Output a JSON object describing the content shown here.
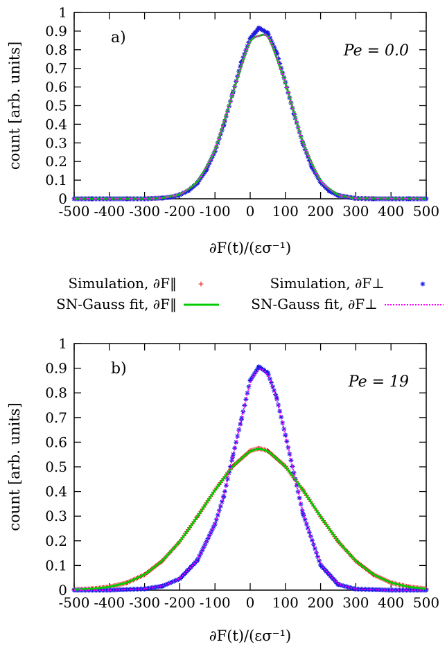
{
  "legend": {
    "entries": [
      {
        "label": "Simulation, ∂F‖",
        "series": "sim-par",
        "color": "#e41a1c",
        "marker": "plus"
      },
      {
        "label": "Simulation, ∂F⊥",
        "series": "sim-perp",
        "color": "#1a1ae6",
        "marker": "star"
      },
      {
        "label": "SN-Gauss fit, ∂F‖",
        "series": "fit-par",
        "color": "#00cc00",
        "marker": "line"
      },
      {
        "label": "SN-Gauss fit, ∂F⊥",
        "series": "fit-perp",
        "color": "#ff00ff",
        "marker": "dotted-line"
      }
    ]
  },
  "chart_data": [
    {
      "type": "scatter",
      "panel_label": "a)",
      "annotation": "Pe = 0.0",
      "xlabel": "∂F(t)/(εσ⁻¹)",
      "ylabel": "count [arb. units]",
      "xlim": [
        -500,
        500
      ],
      "ylim": [
        0,
        1
      ],
      "xticks": [
        -500,
        -400,
        -300,
        -200,
        -100,
        0,
        100,
        200,
        300,
        400,
        500
      ],
      "xtick_labels": [
        "-500",
        "-400",
        "-300",
        "-200",
        "-100",
        "0",
        "100",
        "200",
        "300",
        "400",
        "500"
      ],
      "yticks": [
        0,
        0.1,
        0.2,
        0.3,
        0.4,
        0.5,
        0.6,
        0.7,
        0.8,
        0.9,
        1
      ],
      "ytick_labels": [
        "0",
        "0.1",
        "0.2",
        "0.3",
        "0.4",
        "0.5",
        "0.6",
        "0.7",
        "0.8",
        "0.9",
        "1"
      ],
      "grid": false,
      "series": [
        {
          "key": "sim-par",
          "kind": "points",
          "marker": "plus",
          "color": "#e41a1c",
          "x": [
            -500,
            -450,
            -400,
            -350,
            -300,
            -250,
            -225,
            -200,
            -175,
            -150,
            -125,
            -100,
            -75,
            -50,
            -25,
            0,
            25,
            50,
            75,
            100,
            125,
            150,
            175,
            200,
            225,
            250,
            300,
            350,
            400,
            450,
            500
          ],
          "y": [
            0,
            0,
            0,
            0,
            0,
            0.004,
            0.009,
            0.021,
            0.044,
            0.085,
            0.155,
            0.255,
            0.397,
            0.564,
            0.731,
            0.86,
            0.917,
            0.889,
            0.784,
            0.625,
            0.452,
            0.295,
            0.172,
            0.089,
            0.042,
            0.018,
            0.002,
            0,
            0,
            0,
            0
          ]
        },
        {
          "key": "sim-perp",
          "kind": "points",
          "marker": "star",
          "color": "#1a1ae6",
          "x": [
            -500,
            -450,
            -400,
            -350,
            -300,
            -250,
            -225,
            -200,
            -175,
            -150,
            -125,
            -100,
            -75,
            -50,
            -25,
            0,
            25,
            50,
            75,
            100,
            125,
            150,
            175,
            200,
            225,
            250,
            300,
            350,
            400,
            450,
            500
          ],
          "y": [
            0,
            0,
            0,
            0,
            0,
            0.004,
            0.009,
            0.021,
            0.044,
            0.085,
            0.155,
            0.255,
            0.397,
            0.564,
            0.731,
            0.86,
            0.917,
            0.889,
            0.784,
            0.625,
            0.452,
            0.295,
            0.172,
            0.089,
            0.042,
            0.018,
            0.002,
            0,
            0,
            0,
            0
          ]
        },
        {
          "key": "fit-par",
          "kind": "line",
          "color": "#00cc00",
          "x": [
            -500,
            -300,
            -250,
            -200,
            -150,
            -100,
            -50,
            0,
            50,
            100,
            150,
            200,
            250,
            300,
            500
          ],
          "y": [
            0,
            0,
            0.004,
            0.021,
            0.085,
            0.255,
            0.564,
            0.86,
            0.889,
            0.625,
            0.295,
            0.089,
            0.018,
            0.002,
            0
          ]
        },
        {
          "key": "fit-perp",
          "kind": "line",
          "color": "#ff00ff",
          "x": [
            -500,
            -300,
            -250,
            -200,
            -150,
            -100,
            -50,
            0,
            50,
            100,
            150,
            200,
            250,
            300,
            500
          ],
          "y": [
            0,
            0,
            0.004,
            0.021,
            0.085,
            0.255,
            0.564,
            0.86,
            0.889,
            0.625,
            0.295,
            0.089,
            0.018,
            0.002,
            0
          ]
        }
      ]
    },
    {
      "type": "scatter",
      "panel_label": "b)",
      "annotation": "Pe = 19",
      "xlabel": "∂F(t)/(εσ⁻¹)",
      "ylabel": "count [arb. units]",
      "xlim": [
        -500,
        500
      ],
      "ylim": [
        0,
        1
      ],
      "xticks": [
        -500,
        -400,
        -300,
        -200,
        -100,
        0,
        100,
        200,
        300,
        400,
        500
      ],
      "xtick_labels": [
        "-500",
        "-400",
        "-300",
        "-200",
        "-100",
        "0",
        "100",
        "200",
        "300",
        "400",
        "500"
      ],
      "yticks": [
        0,
        0.1,
        0.2,
        0.3,
        0.4,
        0.5,
        0.6,
        0.7,
        0.8,
        0.9,
        1
      ],
      "ytick_labels": [
        "0",
        "0.1",
        "0.2",
        "0.3",
        "0.4",
        "0.5",
        "0.6",
        "0.7",
        "0.8",
        "0.9",
        "1"
      ],
      "grid": false,
      "series": [
        {
          "key": "sim-par",
          "kind": "points",
          "marker": "plus",
          "color": "#e41a1c",
          "x": [
            -500,
            -450,
            -400,
            -350,
            -300,
            -250,
            -200,
            -150,
            -100,
            -50,
            0,
            25,
            50,
            100,
            150,
            200,
            250,
            300,
            350,
            400,
            450,
            500
          ],
          "y": [
            0.002,
            0.005,
            0.013,
            0.03,
            0.063,
            0.118,
            0.197,
            0.298,
            0.406,
            0.502,
            0.565,
            0.575,
            0.565,
            0.502,
            0.406,
            0.298,
            0.197,
            0.118,
            0.063,
            0.03,
            0.013,
            0.005
          ]
        },
        {
          "key": "sim-perp",
          "kind": "points",
          "marker": "star",
          "color": "#1a1ae6",
          "x": [
            -500,
            -400,
            -300,
            -250,
            -200,
            -150,
            -100,
            -75,
            -50,
            -25,
            0,
            25,
            50,
            75,
            100,
            150,
            200,
            250,
            300,
            400,
            500
          ],
          "y": [
            0,
            0,
            0.005,
            0.016,
            0.046,
            0.121,
            0.268,
            0.381,
            0.539,
            0.692,
            0.85,
            0.906,
            0.881,
            0.781,
            0.629,
            0.31,
            0.102,
            0.023,
            0.004,
            0,
            0
          ]
        },
        {
          "key": "fit-par",
          "kind": "line",
          "color": "#00cc00",
          "x": [
            -500,
            -450,
            -400,
            -350,
            -300,
            -250,
            -200,
            -150,
            -100,
            -50,
            0,
            25,
            50,
            100,
            150,
            200,
            250,
            300,
            350,
            400,
            450,
            500
          ],
          "y": [
            0.002,
            0.005,
            0.013,
            0.03,
            0.063,
            0.118,
            0.197,
            0.298,
            0.406,
            0.502,
            0.565,
            0.575,
            0.565,
            0.502,
            0.406,
            0.298,
            0.197,
            0.118,
            0.063,
            0.03,
            0.013,
            0.005
          ]
        },
        {
          "key": "fit-perp",
          "kind": "line",
          "color": "#ff00ff",
          "x": [
            -500,
            -400,
            -300,
            -250,
            -200,
            -150,
            -100,
            -75,
            -50,
            -25,
            0,
            25,
            50,
            75,
            100,
            150,
            200,
            250,
            300,
            400,
            500
          ],
          "y": [
            0,
            0,
            0.005,
            0.016,
            0.046,
            0.121,
            0.268,
            0.381,
            0.539,
            0.692,
            0.85,
            0.906,
            0.881,
            0.781,
            0.629,
            0.31,
            0.102,
            0.023,
            0.004,
            0,
            0
          ]
        }
      ]
    }
  ]
}
